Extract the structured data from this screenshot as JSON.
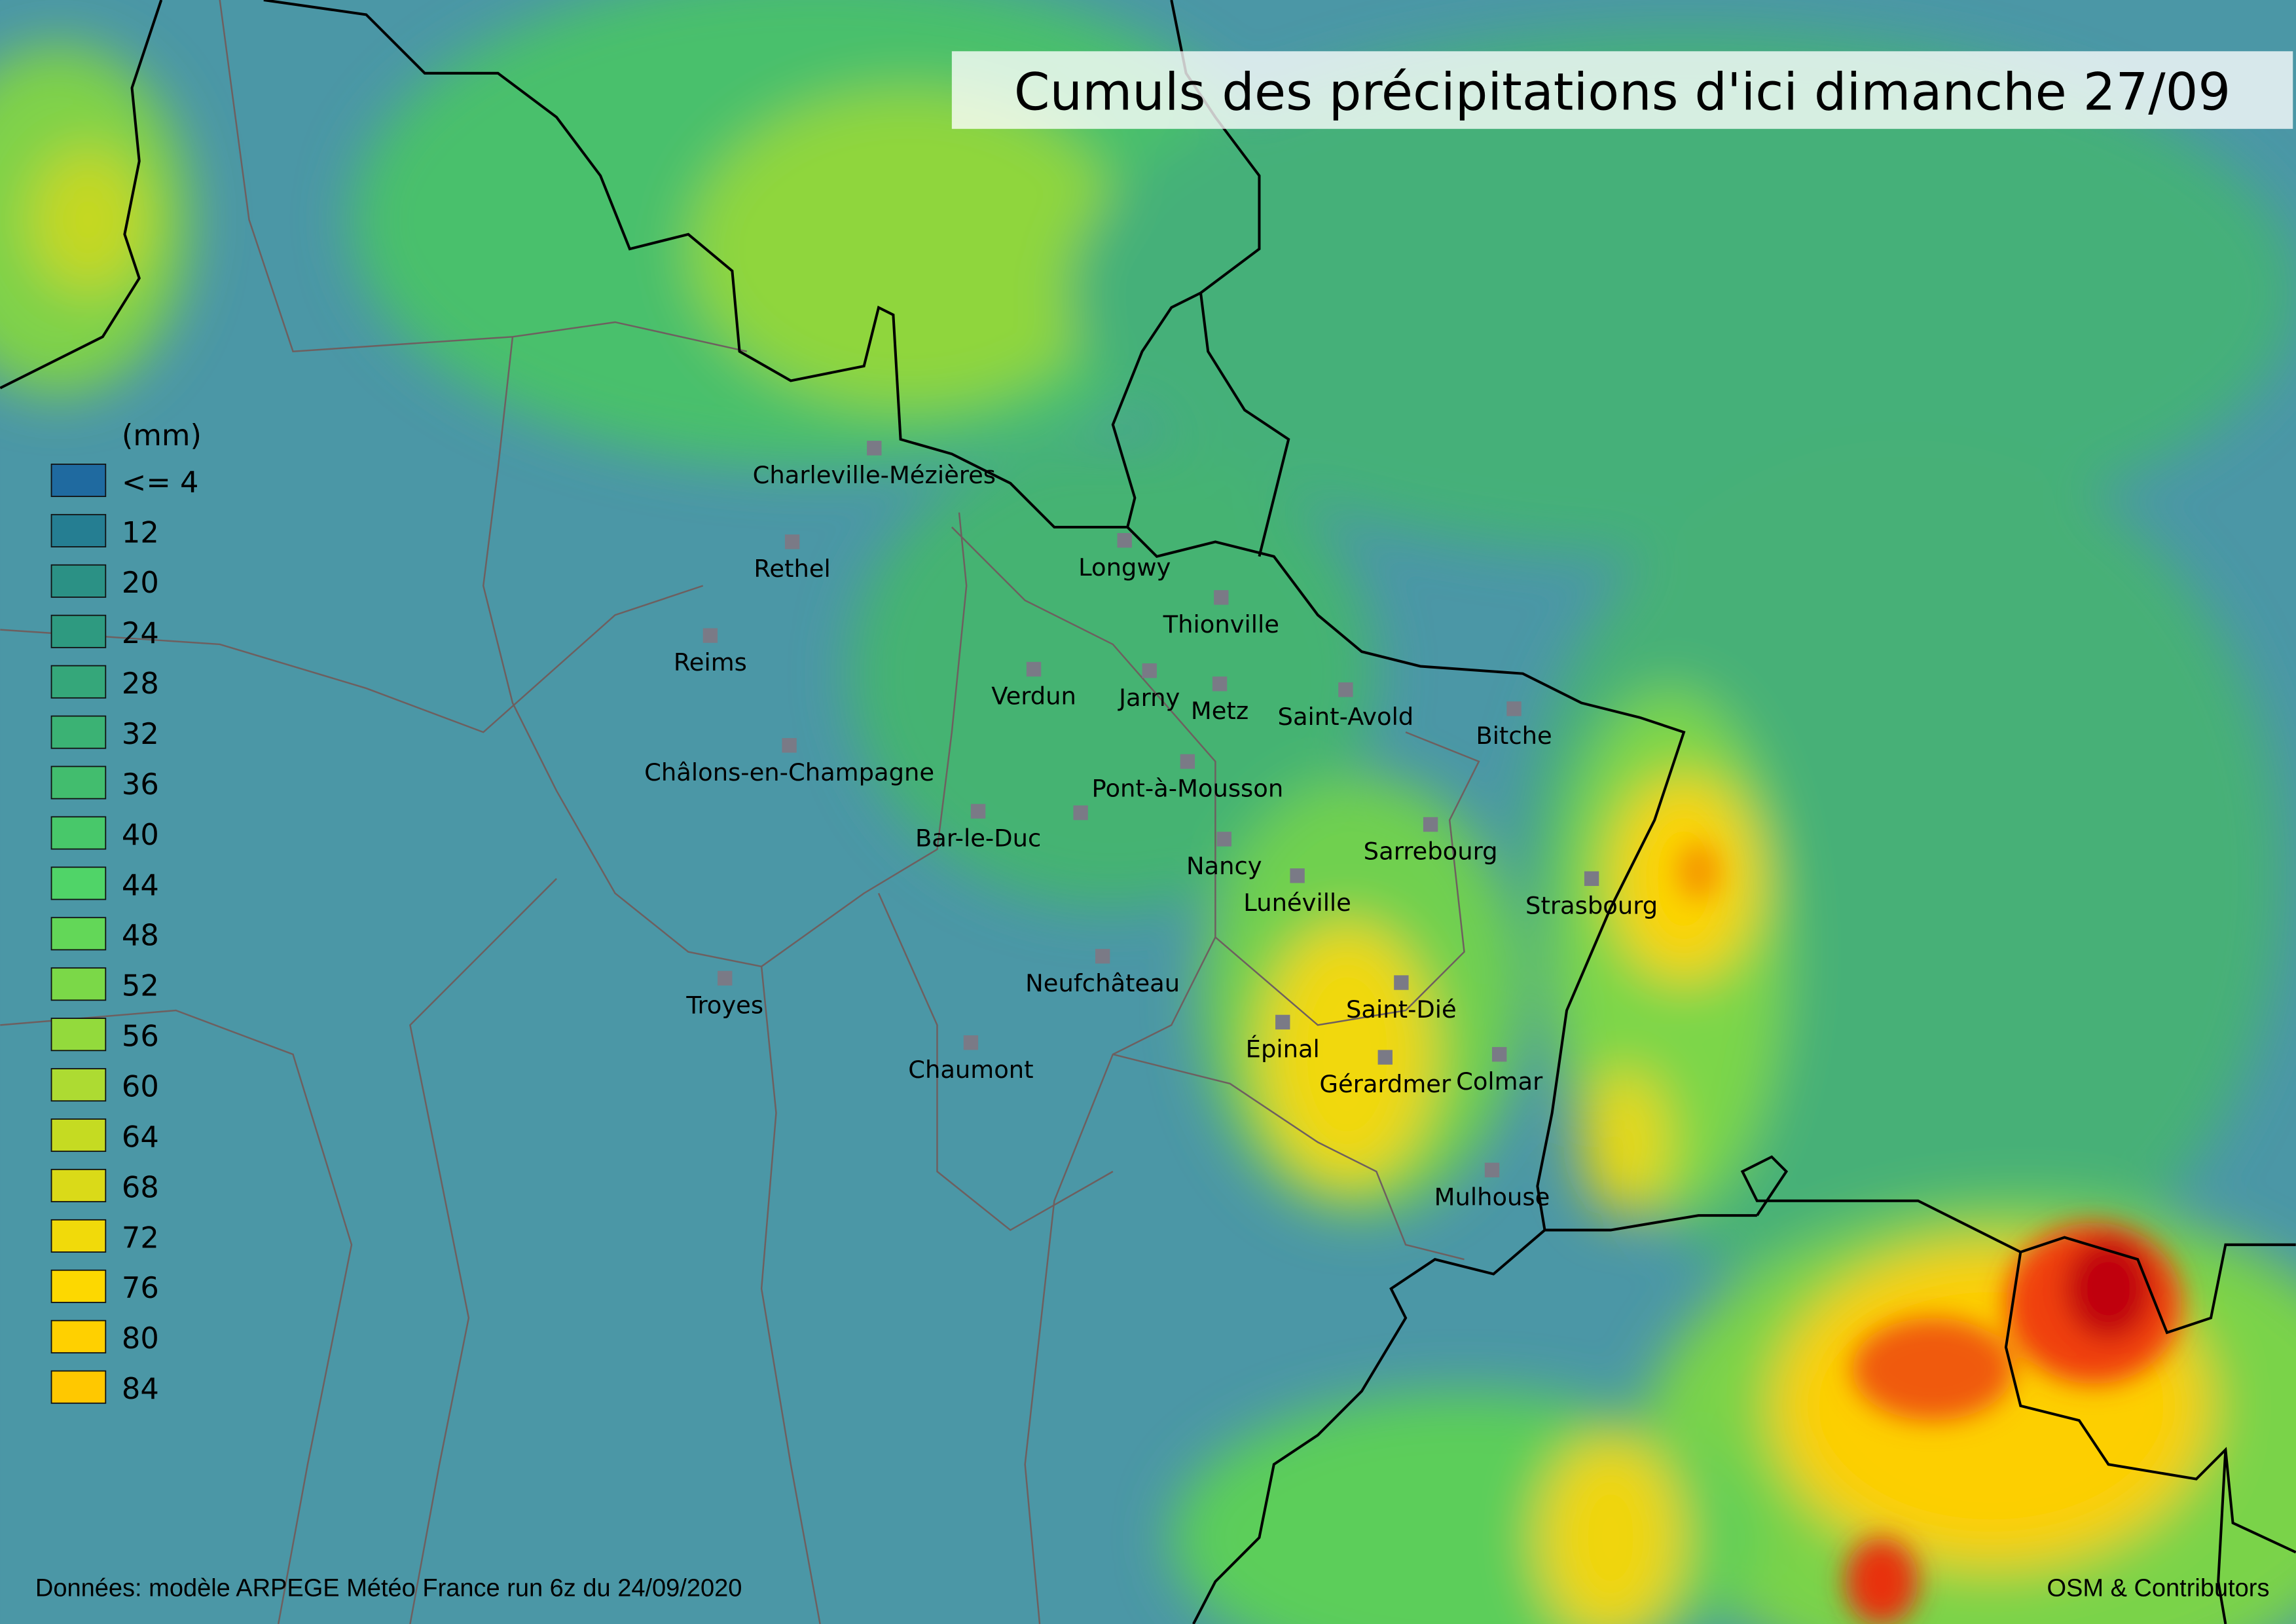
{
  "title": "Cumuls des précipitations d'ici dimanche 27/09",
  "legend": {
    "unit": "(mm)",
    "items": [
      {
        "label": "<= 4",
        "color": "#1f6aa0"
      },
      {
        "label": "12",
        "color": "#257e92"
      },
      {
        "label": "20",
        "color": "#2b9185"
      },
      {
        "label": "24",
        "color": "#2e9a80"
      },
      {
        "label": "28",
        "color": "#35a77a"
      },
      {
        "label": "32",
        "color": "#3bb274"
      },
      {
        "label": "36",
        "color": "#42bd6e"
      },
      {
        "label": "40",
        "color": "#48c86a"
      },
      {
        "label": "44",
        "color": "#50d468"
      },
      {
        "label": "48",
        "color": "#63d758"
      },
      {
        "label": "52",
        "color": "#7bd848"
      },
      {
        "label": "56",
        "color": "#93da3c"
      },
      {
        "label": "60",
        "color": "#addb32"
      },
      {
        "label": "64",
        "color": "#c5db22"
      },
      {
        "label": "68",
        "color": "#dada18"
      },
      {
        "label": "72",
        "color": "#f1da0a"
      },
      {
        "label": "76",
        "color": "#fdd800"
      },
      {
        "label": "80",
        "color": "#ffd000"
      },
      {
        "label": "84",
        "color": "#ffc800"
      }
    ]
  },
  "cities": [
    "Charleville-Mézières",
    "Rethel",
    "Reims",
    "Châlons-en-Champagne",
    "Verdun",
    "Longwy",
    "Thionville",
    "Jarny",
    "Metz",
    "Saint-Avold",
    "Bitche",
    "Pont-à-Mousson",
    "Bar-le-Duc",
    "Sarrebourg",
    "Nancy",
    "Lunéville",
    "Strasbourg",
    "Neufchâteau",
    "Saint-Dié",
    "Troyes",
    "Épinal",
    "Gérardmer",
    "Colmar",
    "Chaumont",
    "Mulhouse"
  ],
  "source": "Données: modèle ARPEGE Météo France run 6z du 24/09/2020",
  "attribution": "OSM & Contributors"
}
